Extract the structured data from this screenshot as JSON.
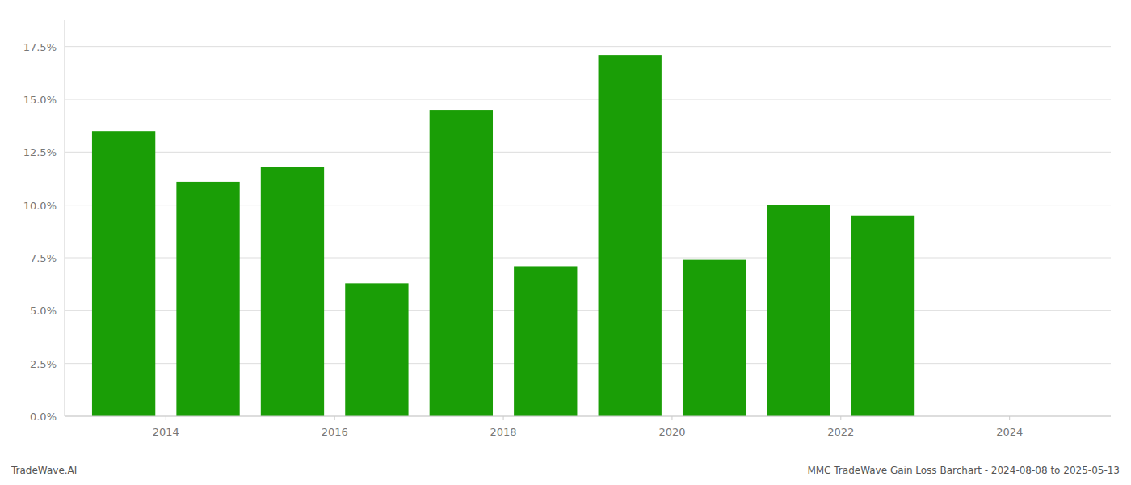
{
  "chart_data": {
    "type": "bar",
    "x": [
      2013,
      2014,
      2015,
      2016,
      2017,
      2018,
      2019,
      2020,
      2021,
      2022
    ],
    "values": [
      0.135,
      0.111,
      0.118,
      0.063,
      0.145,
      0.071,
      0.171,
      0.074,
      0.1,
      0.095
    ],
    "color": "#1a9e06",
    "xlim": [
      2012.3,
      2024.7
    ],
    "xticks": [
      {
        "value": 2013.5,
        "label": "2014"
      },
      {
        "value": 2015.5,
        "label": "2016"
      },
      {
        "value": 2017.5,
        "label": "2018"
      },
      {
        "value": 2019.5,
        "label": "2020"
      },
      {
        "value": 2021.5,
        "label": "2022"
      },
      {
        "value": 2023.5,
        "label": "2024"
      }
    ],
    "ylim": [
      0,
      0.1875
    ],
    "yticks": [
      {
        "value": 0.0,
        "label": "0.0%"
      },
      {
        "value": 0.025,
        "label": "2.5%"
      },
      {
        "value": 0.05,
        "label": "5.0%"
      },
      {
        "value": 0.075,
        "label": "7.5%"
      },
      {
        "value": 0.1,
        "label": "10.0%"
      },
      {
        "value": 0.125,
        "label": "12.5%"
      },
      {
        "value": 0.15,
        "label": "15.0%"
      },
      {
        "value": 0.175,
        "label": "17.5%"
      }
    ],
    "grid": true,
    "annotations": [
      "TradeWave.AI",
      "MMC TradeWave Gain Loss Barchart - 2024-08-08 to 2025-05-13"
    ]
  }
}
